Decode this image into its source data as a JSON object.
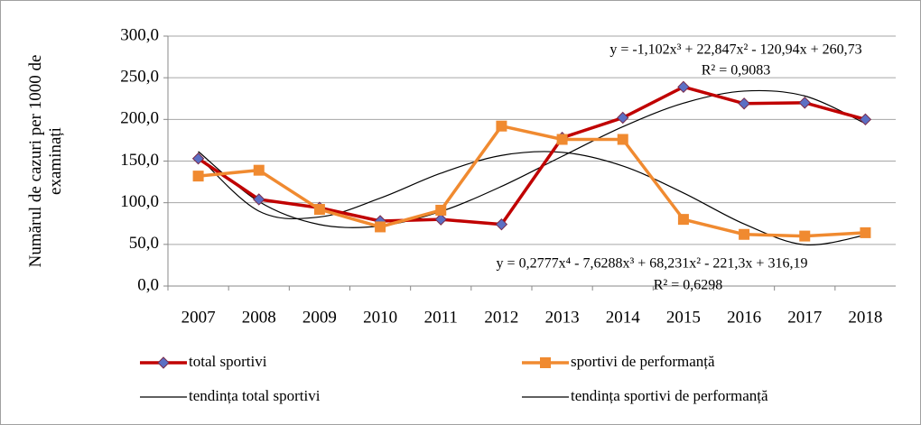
{
  "chart_data": {
    "type": "line",
    "y_label": [
      "Numărul de cazuri per 1000 de",
      "examinați"
    ],
    "categories": [
      "2007",
      "2008",
      "2009",
      "2010",
      "2011",
      "2012",
      "2013",
      "2014",
      "2015",
      "2016",
      "2017",
      "2018"
    ],
    "series": [
      {
        "name": "total sportivi",
        "color": "#c00000",
        "marker": "diamond",
        "marker_color": "#5b6fc4",
        "values": [
          153,
          104,
          94,
          78,
          80,
          74,
          178,
          202,
          239,
          219,
          220,
          200
        ]
      },
      {
        "name": "sportivi de performanță",
        "color": "#f08a30",
        "marker": "square",
        "marker_color": "#f08a30",
        "values": [
          132,
          139,
          92,
          71,
          91,
          192,
          176,
          176,
          80,
          62,
          60,
          64
        ]
      },
      {
        "name": "tendința total sportivi",
        "color": "#000000",
        "smooth": true,
        "values": [
          161.5,
          101.4,
          73.8,
          72.0,
          89.5,
          119.6,
          155.7,
          191.2,
          219.5,
          234.0,
          228.1,
          195.1
        ]
      },
      {
        "name": "tendința sportivi de performanță",
        "color": "#000000",
        "smooth": true,
        "values": [
          155.8,
          89.9,
          82.9,
          105.5,
          135.4,
          156.8,
          160.5,
          144.1,
          111.8,
          74.5,
          49.6,
          61.2
        ]
      }
    ],
    "annotations": [
      "y = -1,102x³ + 22,847x² - 120,94x + 260,73",
      "R² = 0,9083",
      "y = 0,2777x⁴ - 7,6288x³ + 68,231x² - 221,3x + 316,19",
      "R² = 0,6298"
    ],
    "ylim": [
      0,
      300
    ],
    "yticks": [
      {
        "value": 0,
        "label": "0,0"
      },
      {
        "value": 50,
        "label": "50,0"
      },
      {
        "value": 100,
        "label": "100,0"
      },
      {
        "value": 150,
        "label": "150,0"
      },
      {
        "value": 200,
        "label": "200,0"
      },
      {
        "value": 250,
        "label": "250,0"
      },
      {
        "value": 300,
        "label": "300,0"
      }
    ],
    "grid": true
  }
}
